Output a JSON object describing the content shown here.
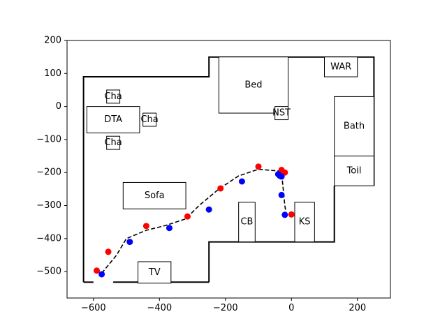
{
  "chart_data": {
    "type": "scatter",
    "xlim": [
      -680,
      300
    ],
    "ylim": [
      -580,
      200
    ],
    "xticks": [
      -600,
      -400,
      -200,
      0,
      200
    ],
    "yticks": [
      -500,
      -400,
      -300,
      -200,
      -100,
      0,
      100,
      200
    ],
    "grid": false,
    "walls": [
      [
        [
          -630,
          -532
        ],
        [
          -630,
          90
        ],
        [
          -250,
          90
        ],
        [
          -250,
          150
        ],
        [
          250,
          150
        ],
        [
          250,
          -240
        ]
      ],
      [
        [
          -250,
          -532
        ],
        [
          -250,
          -410
        ],
        [
          130,
          -410
        ],
        [
          130,
          -240
        ]
      ],
      [
        [
          -630,
          -532
        ],
        [
          -600,
          -532
        ]
      ],
      [
        [
          -540,
          -532
        ],
        [
          -250,
          -532
        ]
      ]
    ],
    "rooms": [
      {
        "label": "Bed",
        "x0": -220,
        "x1": -10,
        "y0": -20,
        "y1": 150
      },
      {
        "label": "WAR",
        "x0": 100,
        "x1": 200,
        "y0": 90,
        "y1": 150
      },
      {
        "label": "Bath",
        "x0": 130,
        "x1": 250,
        "y0": -150,
        "y1": 30
      },
      {
        "label": "Toil",
        "x0": 130,
        "x1": 250,
        "y0": -240,
        "y1": -150
      },
      {
        "label": "NST",
        "x0": -50,
        "x1": -10,
        "y0": -40,
        "y1": 0
      },
      {
        "label": "DTA",
        "x0": -620,
        "x1": -460,
        "y0": -80,
        "y1": 0
      },
      {
        "label": "Cha",
        "x0": -560,
        "x1": -520,
        "y0": 10,
        "y1": 50
      },
      {
        "label": "Cha",
        "x0": -450,
        "x1": -410,
        "y0": -60,
        "y1": -20
      },
      {
        "label": "Cha",
        "x0": -560,
        "x1": -520,
        "y0": -130,
        "y1": -90
      },
      {
        "label": "Sofa",
        "x0": -510,
        "x1": -320,
        "y0": -310,
        "y1": -230
      },
      {
        "label": "CB",
        "x0": -160,
        "x1": -110,
        "y0": -410,
        "y1": -290
      },
      {
        "label": "KS",
        "x0": 10,
        "x1": 70,
        "y0": -410,
        "y1": -290
      },
      {
        "label": "TV",
        "x0": -465,
        "x1": -365,
        "y0": -535,
        "y1": -470
      }
    ],
    "path": {
      "x": [
        -575,
        -530,
        -500,
        -440,
        -380,
        -320,
        -280,
        -220,
        -160,
        -100,
        -40,
        -30,
        -25,
        -20,
        -15
      ],
      "y": [
        -505,
        -450,
        -400,
        -375,
        -360,
        -340,
        -300,
        -250,
        -210,
        -190,
        -195,
        -200,
        -250,
        -300,
        -330
      ]
    },
    "series": [
      {
        "color": "#ff0000",
        "x": [
          -590,
          -555,
          -440,
          -315,
          -215,
          -100,
          -30,
          -20,
          0
        ],
        "y": [
          -497,
          -440,
          -362,
          -333,
          -248,
          -182,
          -192,
          -200,
          -327
        ]
      },
      {
        "color": "#0000ff",
        "x": [
          -575,
          -490,
          -370,
          -250,
          -150,
          -40,
          -35,
          -30,
          -30,
          -20
        ],
        "y": [
          -508,
          -410,
          -368,
          -312,
          -227,
          -205,
          -210,
          -212,
          -268,
          -328
        ]
      }
    ]
  }
}
